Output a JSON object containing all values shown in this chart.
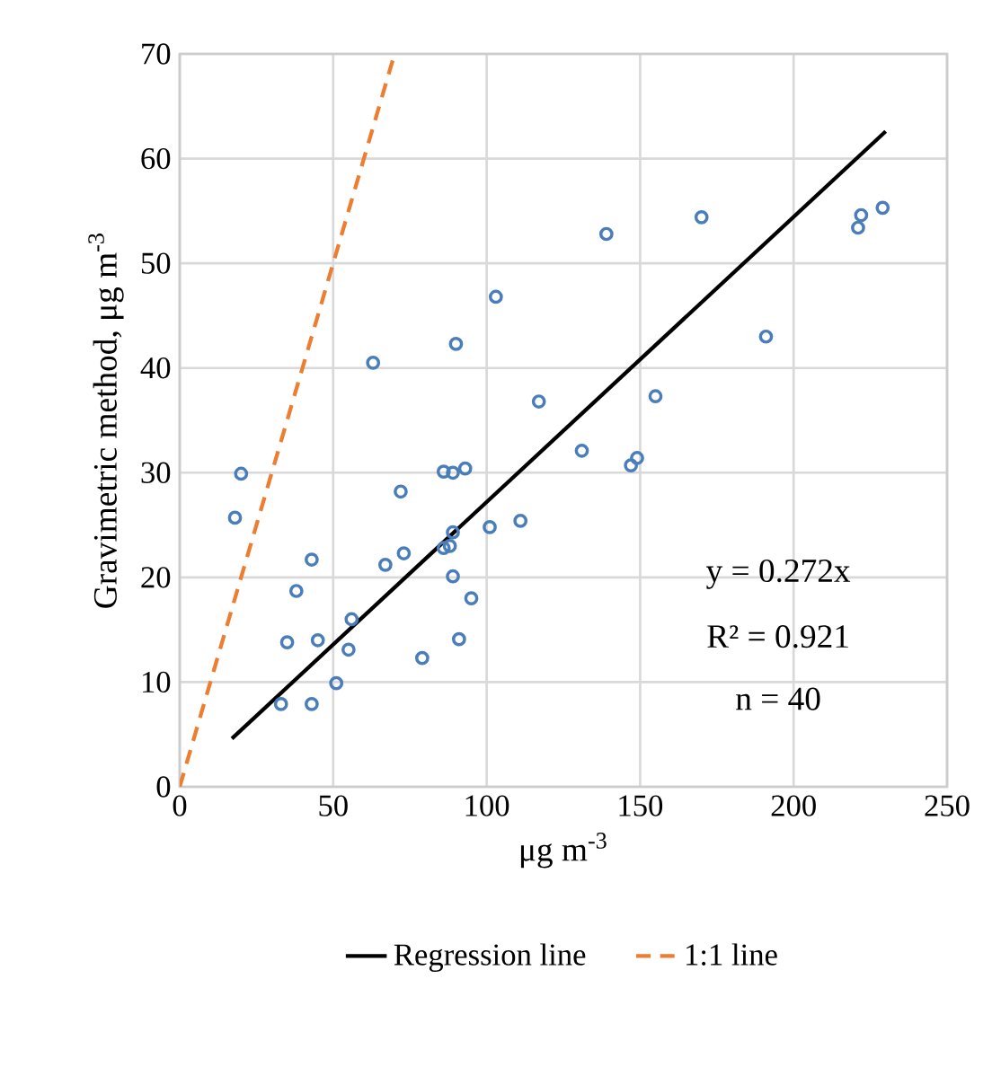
{
  "chart_data": {
    "type": "scatter",
    "xlabel": "μg m$^{-3}$",
    "ylabel": "Gravimetric  method, μg m$^{-3}$",
    "xlim": [
      0,
      250
    ],
    "ylim": [
      0,
      70
    ],
    "xticks": [
      0,
      50,
      100,
      150,
      200,
      250
    ],
    "yticks": [
      0,
      10,
      20,
      30,
      40,
      50,
      60,
      70
    ],
    "grid": true,
    "legend": "bottom",
    "marker": "circle",
    "annotations": [
      "y = 0.272x",
      "R² = 0.921",
      "n = 40"
    ],
    "series": [
      {
        "color": "#4a7ebb",
        "x": [
          18,
          20,
          33,
          35,
          38,
          43,
          43,
          45,
          51,
          55,
          56,
          63,
          67,
          72,
          73,
          79,
          86,
          86,
          89,
          89,
          88,
          89,
          90,
          91,
          93,
          95,
          101,
          103,
          111,
          117,
          131,
          139,
          147,
          149,
          155,
          170,
          191,
          221,
          222,
          229
        ],
        "values": [
          25.7,
          29.9,
          7.9,
          13.8,
          18.7,
          21.7,
          7.9,
          14.0,
          9.9,
          13.1,
          16.0,
          40.5,
          21.2,
          28.2,
          22.3,
          12.3,
          22.8,
          30.1,
          30.0,
          24.3,
          23.0,
          20.1,
          42.3,
          14.1,
          30.4,
          18.0,
          24.8,
          46.8,
          25.4,
          36.8,
          32.1,
          52.8,
          30.7,
          31.4,
          37.3,
          54.4,
          43.0,
          53.4,
          54.6,
          55.3
        ]
      },
      {
        "type": "line",
        "name": "Regression line",
        "color": "#000000",
        "marker": "none",
        "line_style": "solid",
        "x": [
          17,
          230
        ],
        "values": [
          4.6,
          62.6
        ]
      },
      {
        "type": "line",
        "name": "1:1 line",
        "color": "#ed7d31",
        "marker": "none",
        "line_style": "dashed",
        "x": [
          0,
          70
        ],
        "values": [
          0,
          70
        ]
      }
    ]
  }
}
